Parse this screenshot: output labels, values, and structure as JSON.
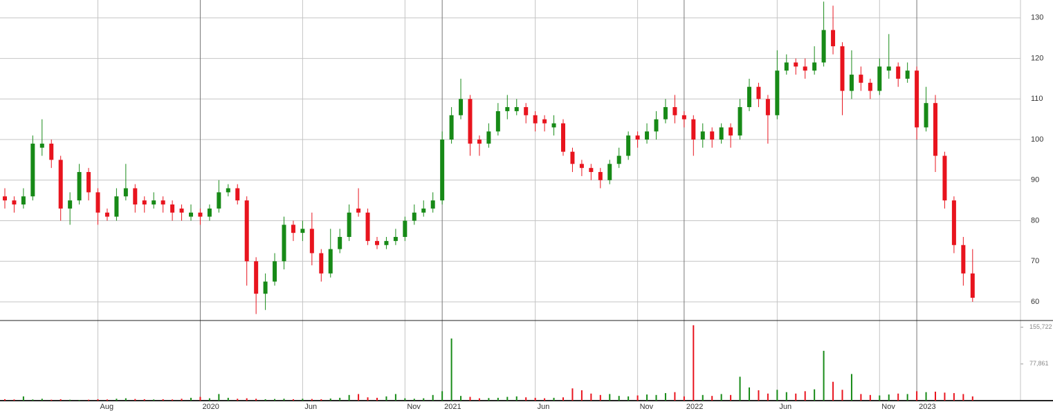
{
  "chart_data": {
    "type": "candlestick",
    "categories": [
      null,
      null,
      null,
      null,
      null,
      null,
      null,
      null,
      null,
      null,
      "Aug",
      null,
      null,
      null,
      null,
      null,
      null,
      null,
      null,
      null,
      null,
      "2020",
      null,
      null,
      null,
      null,
      null,
      null,
      null,
      null,
      null,
      null,
      "Jun",
      null,
      null,
      null,
      null,
      null,
      null,
      null,
      null,
      null,
      null,
      "Nov",
      null,
      null,
      null,
      "2021",
      null,
      null,
      null,
      null,
      null,
      null,
      null,
      null,
      null,
      "Jun",
      null,
      null,
      null,
      null,
      null,
      null,
      null,
      null,
      null,
      null,
      "Nov",
      null,
      null,
      null,
      null,
      "2022",
      null,
      null,
      null,
      null,
      null,
      null,
      null,
      null,
      null,
      "Jun",
      null,
      null,
      null,
      null,
      null,
      null,
      null,
      null,
      null,
      null,
      "Nov",
      null,
      null,
      null,
      "2023",
      null,
      null,
      null,
      null,
      null,
      null
    ],
    "open": [
      86,
      85,
      84,
      86,
      98,
      99,
      95,
      83,
      85,
      92,
      87,
      82,
      81,
      86,
      88,
      85,
      84,
      85,
      84,
      83,
      81,
      82,
      81,
      83,
      87,
      88,
      85,
      70,
      62,
      65,
      70,
      79,
      77,
      78,
      72,
      67,
      73,
      76,
      83,
      82,
      75,
      74,
      75,
      76,
      80,
      82,
      83,
      85,
      100,
      106,
      110,
      100,
      99,
      102,
      107,
      107,
      108,
      106,
      105,
      103,
      104,
      97,
      94,
      93,
      92,
      90,
      94,
      96,
      101,
      100,
      102,
      105,
      108,
      106,
      105,
      100,
      102,
      100,
      103,
      101,
      108,
      113,
      110,
      106,
      117,
      119,
      118,
      117,
      119,
      127,
      123,
      112,
      116,
      114,
      112,
      117,
      118,
      115,
      117,
      103,
      109,
      96,
      85,
      74,
      67
    ],
    "high": [
      88,
      86,
      88,
      101,
      105,
      100,
      96,
      87,
      94,
      93,
      88,
      83,
      88,
      94,
      89,
      86,
      87,
      86,
      85,
      84,
      84,
      83,
      84,
      90,
      89,
      89,
      86,
      71,
      67,
      72,
      81,
      80,
      80,
      82,
      73,
      78,
      78,
      84,
      88,
      83,
      76,
      76,
      78,
      81,
      84,
      85,
      87,
      102,
      108,
      115,
      111,
      101,
      104,
      109,
      111,
      110,
      109,
      107,
      106,
      106,
      105,
      98,
      95,
      94,
      93,
      95,
      98,
      102,
      102,
      104,
      107,
      110,
      111,
      107,
      106,
      104,
      103,
      104,
      104,
      110,
      115,
      114,
      111,
      122,
      121,
      120,
      120,
      123,
      134,
      133,
      124,
      122,
      118,
      115,
      120,
      126,
      119,
      119,
      118,
      113,
      111,
      97,
      86,
      76,
      73
    ],
    "low": [
      83,
      82,
      83,
      85,
      96,
      93,
      80,
      79,
      84,
      85,
      79,
      80,
      80,
      85,
      82,
      82,
      83,
      82,
      80,
      80,
      80,
      79,
      80,
      82,
      86,
      84,
      64,
      57,
      58,
      64,
      68,
      75,
      75,
      69,
      65,
      66,
      72,
      75,
      81,
      74,
      73,
      73,
      74,
      75,
      79,
      81,
      82,
      84,
      99,
      105,
      96,
      96,
      98,
      101,
      105,
      106,
      104,
      102,
      102,
      101,
      96,
      92,
      91,
      90,
      88,
      89,
      93,
      95,
      98,
      99,
      100,
      104,
      104,
      103,
      96,
      98,
      98,
      99,
      98,
      100,
      107,
      108,
      99,
      105,
      116,
      116,
      115,
      116,
      118,
      121,
      106,
      110,
      112,
      110,
      111,
      115,
      113,
      114,
      100,
      102,
      92,
      83,
      72,
      64,
      60
    ],
    "close": [
      85,
      84,
      86,
      99,
      99,
      95,
      83,
      85,
      92,
      87,
      82,
      81,
      86,
      88,
      84,
      84,
      85,
      84,
      82,
      82,
      82,
      81,
      83,
      87,
      88,
      85,
      70,
      62,
      65,
      70,
      79,
      77,
      78,
      72,
      67,
      73,
      76,
      82,
      82,
      75,
      74,
      75,
      76,
      80,
      82,
      83,
      85,
      100,
      106,
      110,
      99,
      99,
      102,
      107,
      108,
      108,
      106,
      104,
      104,
      104,
      97,
      94,
      93,
      92,
      90,
      94,
      96,
      101,
      100,
      102,
      105,
      108,
      106,
      105,
      100,
      102,
      100,
      103,
      101,
      108,
      113,
      110,
      106,
      117,
      119,
      118,
      117,
      119,
      127,
      123,
      112,
      116,
      114,
      112,
      118,
      118,
      115,
      117,
      103,
      109,
      96,
      85,
      74,
      67,
      61
    ],
    "volume": [
      3000,
      2500,
      9000,
      2500,
      4000,
      2000,
      3000,
      2000,
      1500,
      2000,
      3000,
      2500,
      4000,
      5000,
      3500,
      3000,
      2500,
      3000,
      2500,
      4000,
      6000,
      8000,
      5000,
      14000,
      6000,
      4000,
      5000,
      4000,
      3000,
      3500,
      4000,
      3000,
      4000,
      3500,
      3000,
      4500,
      6000,
      12000,
      14000,
      7000,
      6000,
      9000,
      14000,
      5000,
      4000,
      5000,
      12000,
      20000,
      131800,
      10000,
      8000,
      5000,
      5500,
      6000,
      8000,
      9000,
      7000,
      6000,
      5000,
      6000,
      7000,
      26000,
      22000,
      15000,
      12000,
      14000,
      10000,
      9000,
      11000,
      13000,
      12000,
      16000,
      18000,
      9000,
      160000,
      12000,
      10000,
      14000,
      12000,
      50700,
      28000,
      22000,
      15000,
      23000,
      18000,
      15000,
      20000,
      24000,
      105700,
      40000,
      23000,
      56500,
      14000,
      12000,
      11000,
      13000,
      15000,
      14000,
      20000,
      18000,
      19000,
      17000,
      16000,
      14000,
      9000
    ],
    "ylim": [
      55.4,
      134.4
    ],
    "yticks": [
      60,
      70,
      80,
      90,
      100,
      110,
      120,
      130
    ],
    "volume_ylim": [
      0,
      170000
    ],
    "volume_yticks": [
      {
        "value": 155722,
        "label": "155,722"
      },
      {
        "value": 77861,
        "label": "77,861"
      }
    ],
    "up_color": "#178a17",
    "down_color": "#e8141e",
    "grid": true
  }
}
